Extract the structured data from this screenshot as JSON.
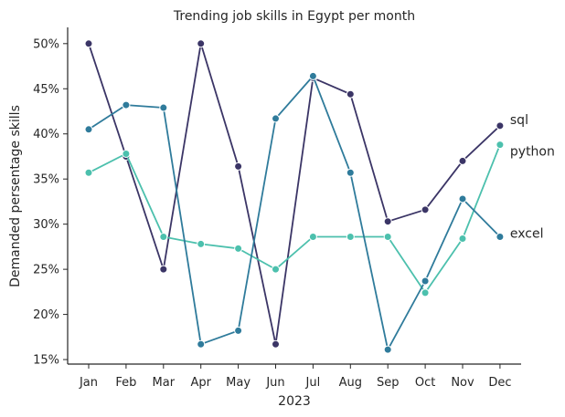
{
  "chart_data": {
    "type": "line",
    "title": "Trending job skills in Egypt per month",
    "xlabel": "2023",
    "ylabel": "Demanded persentage skills",
    "categories": [
      "Jan",
      "Feb",
      "Mar",
      "Apr",
      "May",
      "Jun",
      "Jul",
      "Aug",
      "Sep",
      "Oct",
      "Nov",
      "Dec"
    ],
    "ylim": [
      14.5,
      51.8
    ],
    "yticks": [
      15,
      20,
      25,
      30,
      35,
      40,
      45,
      50
    ],
    "ytick_labels": [
      "15%",
      "20%",
      "25%",
      "30%",
      "35%",
      "40%",
      "45%",
      "50%"
    ],
    "grid": false,
    "legend": "labels at line ends",
    "series": [
      {
        "name": "sql",
        "color": "#3b3566",
        "values": [
          50.0,
          37.5,
          25.0,
          50.0,
          36.4,
          16.7,
          46.2,
          44.4,
          30.3,
          31.6,
          37.0,
          40.9
        ]
      },
      {
        "name": "python",
        "color": "#4cc0ad",
        "values": [
          35.7,
          37.8,
          28.6,
          27.8,
          27.3,
          25.0,
          28.6,
          28.6,
          28.6,
          22.4,
          28.4,
          38.8
        ]
      },
      {
        "name": "excel",
        "color": "#2f7b9b",
        "values": [
          40.5,
          43.2,
          42.9,
          16.7,
          18.2,
          41.7,
          46.4,
          35.7,
          16.1,
          23.7,
          32.8,
          28.6
        ]
      }
    ]
  }
}
